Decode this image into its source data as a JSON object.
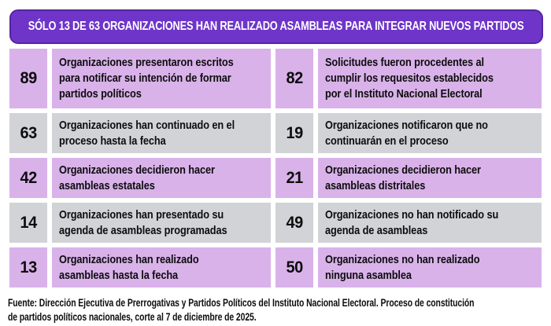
{
  "colors": {
    "header_bg": "#6f35c9",
    "header_border": "#5326a2",
    "row_purple": "#d9b2ea",
    "row_gray": "#d2d3d7"
  },
  "header": {
    "title": "SÓLO 13 DE 63 ORGANIZACIONES HAN REALIZADO ASAMBLEAS PARA INTEGRAR NUEVOS PARTIDOS"
  },
  "table": {
    "rows": [
      {
        "left": {
          "value": "89",
          "text": "Organizaciones presentaron escritos\npara notificar su intención de formar\npartidos políticos"
        },
        "right": {
          "value": "82",
          "text": "Solicitudes fueron procedentes al\ncumplir los requesitos establecidos\npor el Instituto Nacional Electoral"
        }
      },
      {
        "left": {
          "value": "63",
          "text": "Organizaciones han continuado en el\nproceso hasta la fecha"
        },
        "right": {
          "value": "19",
          "text": "Organizaciones notificaron que no\ncontinuarán en el proceso"
        }
      },
      {
        "left": {
          "value": "42",
          "text": "Organizaciones decidieron hacer\nasambleas estatales"
        },
        "right": {
          "value": "21",
          "text": "Organizaciones decidieron hacer\nasambleas distritales"
        }
      },
      {
        "left": {
          "value": "14",
          "text": "Organizaciones han presentado su\nagenda de asambleas programadas"
        },
        "right": {
          "value": "49",
          "text": "Organizaciones no han notificado su\nagenda de asambleas"
        }
      },
      {
        "left": {
          "value": "13",
          "text": "Organizaciones han realizado\nasambleas hasta la fecha"
        },
        "right": {
          "value": "50",
          "text": "Organizaciones no han realizado\nninguna asamblea"
        }
      }
    ]
  },
  "footer": {
    "source": "Fuente: Dirección Ejecutiva de Prerrogativas y Partidos Políticos del Instituto Nacional Electoral. Proceso de constitución\nde partidos políticos nacionales, corte al 7 de diciembre de 2025."
  },
  "chart_data": {
    "type": "table",
    "title": "SÓLO 13 DE 63 ORGANIZACIONES HAN REALIZADO ASAMBLEAS PARA INTEGRAR NUEVOS PARTIDOS",
    "categories": [
      "Organizaciones presentaron escritos para notificar su intención de formar partidos políticos",
      "Solicitudes fueron procedentes al cumplir los requesitos establecidos por el Instituto Nacional Electoral",
      "Organizaciones han continuado en el proceso hasta la fecha",
      "Organizaciones notificaron que no continuarán en el proceso",
      "Organizaciones decidieron hacer asambleas estatales",
      "Organizaciones decidieron hacer asambleas distritales",
      "Organizaciones han presentado su agenda de asambleas programadas",
      "Organizaciones no han notificado su agenda de asambleas",
      "Organizaciones han realizado asambleas hasta la fecha",
      "Organizaciones no han realizado ninguna asamblea"
    ],
    "values": [
      89,
      82,
      63,
      19,
      42,
      21,
      14,
      49,
      13,
      50
    ],
    "source_note": "Fuente: Dirección Ejecutiva de Prerrogativas y Partidos Políticos del Instituto Nacional Electoral. Proceso de constitución de partidos políticos nacionales, corte al 7 de diciembre de 2025."
  }
}
